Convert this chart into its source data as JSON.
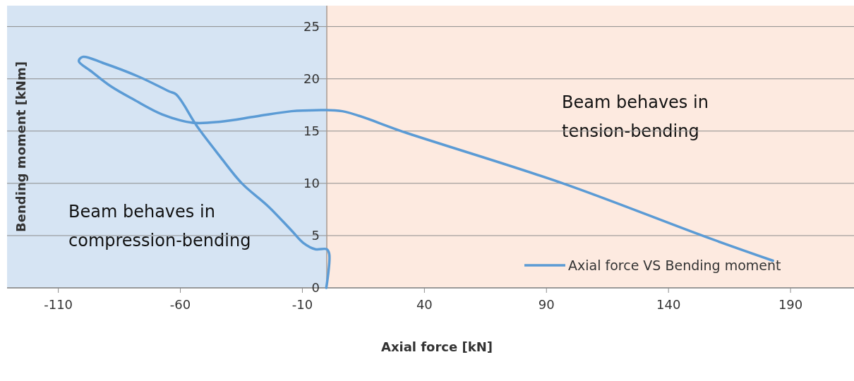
{
  "chart_data": {
    "type": "line",
    "xlabel": "Axial force [kN]",
    "ylabel": "Bending moment [kNm]",
    "xlim": [
      -131,
      216
    ],
    "xticks": [
      -110,
      -60,
      -10,
      40,
      90,
      140,
      190
    ],
    "ylim": [
      0,
      27
    ],
    "yticks": [
      0,
      5,
      10,
      15,
      20,
      25
    ],
    "grid": "y",
    "legend": "bottom right",
    "line_style": "solid",
    "marker": "none",
    "bands": [
      {
        "axis": "x",
        "from": -131,
        "to": 0,
        "label": "Beam behaves in compression-bending",
        "color": "#d6e4f3"
      },
      {
        "axis": "x",
        "from": 0,
        "to": 216,
        "label": "Beam behaves in tension-bending",
        "color": "#fdeae0"
      }
    ],
    "series": [
      {
        "name": "Axial force VS Bending moment",
        "color": "#5b9bd5",
        "x": [
          -0.2,
          1,
          0,
          -4.7,
          -9.6,
          -14.5,
          -24,
          -34.8,
          -43.5,
          -53,
          -61.7,
          -64.6,
          -77,
          -91.5,
          -100,
          -101.6,
          -96.4,
          -88.6,
          -79,
          -67.5,
          -55,
          -43.5,
          -29,
          -14.5,
          -4.7,
          6.4,
          33,
          96.7,
          155,
          182.8
        ],
        "values": [
          0,
          3.25,
          3.7,
          3.7,
          4.3,
          5.5,
          7.8,
          10,
          12.5,
          15.4,
          18.5,
          18.8,
          20.2,
          21.5,
          22.1,
          21.7,
          20.7,
          19.3,
          18,
          16.6,
          15.8,
          15.9,
          16.4,
          16.9,
          17,
          16.9,
          14.8,
          10,
          4.9,
          2.6
        ]
      }
    ]
  }
}
